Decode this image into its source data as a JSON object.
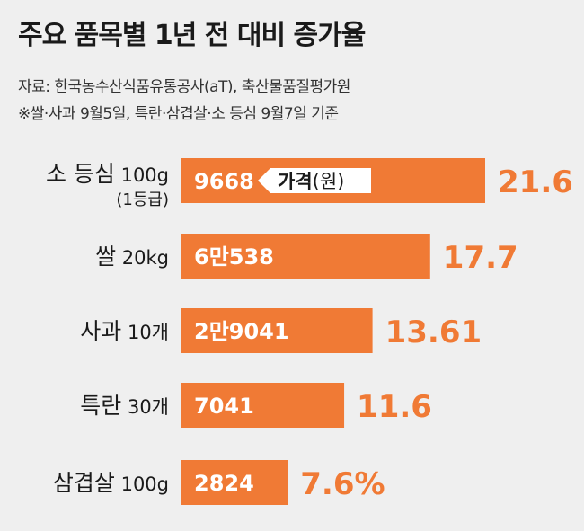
{
  "title": "주요 품목별 1년 전 대비 증가율",
  "source_line1": "자료: 한국농수산식품유통공사(aT), 축산물품질평가원",
  "source_line2": "※쌀·사과 9월5일, 특란·삼겹살·소 등심 9월7일 기준",
  "price_tag": {
    "bold": "가격",
    "unit": "(원)"
  },
  "colors": {
    "bar": "#f07a35",
    "pct_text": "#f07a35",
    "background": "#efefef"
  },
  "chart_data": {
    "type": "bar",
    "orientation": "horizontal",
    "title": "주요 품목별 1년 전 대비 증가율",
    "categories": [
      {
        "name": "소 등심",
        "unit": "100g",
        "sub": "(1등급)"
      },
      {
        "name": "쌀",
        "unit": "20kg",
        "sub": ""
      },
      {
        "name": "사과",
        "unit": "10개",
        "sub": ""
      },
      {
        "name": "특란",
        "unit": "30개",
        "sub": ""
      },
      {
        "name": "삼겹살",
        "unit": "100g",
        "sub": ""
      }
    ],
    "price_labels": [
      "9668",
      "6만538",
      "2만9041",
      "7041",
      "2824"
    ],
    "prices": [
      9668,
      60538,
      29041,
      7041,
      2824
    ],
    "values": [
      21.6,
      17.7,
      13.61,
      11.6,
      7.6
    ],
    "value_labels": [
      "21.6",
      "17.7",
      "13.61",
      "11.6",
      "7.6%"
    ],
    "xlim": [
      0,
      21.6
    ]
  }
}
